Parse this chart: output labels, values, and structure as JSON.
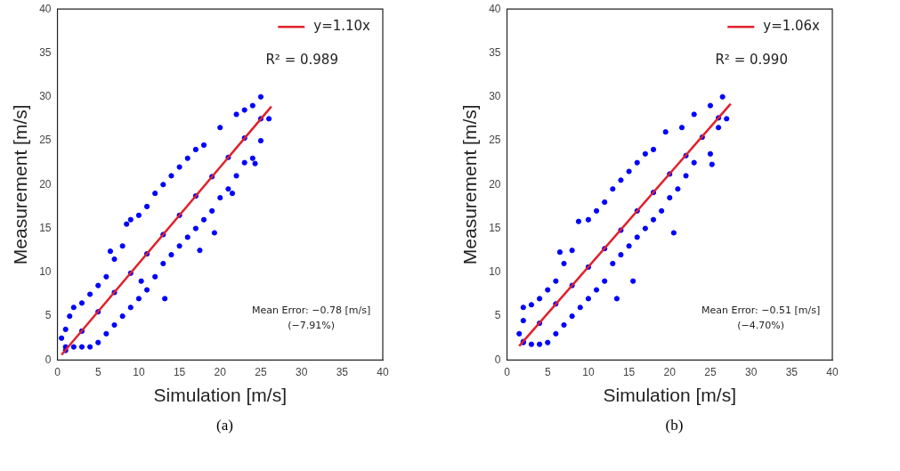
{
  "chart_data": [
    {
      "type": "scatter",
      "xlabel": "Simulation [m/s]",
      "ylabel": "Measurement [m/s]",
      "xlim": [
        0,
        40
      ],
      "ylim": [
        0,
        40
      ],
      "xticks": [
        0,
        5,
        10,
        15,
        20,
        25,
        30,
        35,
        40
      ],
      "yticks": [
        0,
        5,
        10,
        15,
        20,
        25,
        30,
        35,
        40
      ],
      "grid": false,
      "legend": "top right",
      "marker": "circle",
      "annotations": [
        "R² = 0.989",
        "Mean Error: −0.78 [m/s]",
        "(−7.91%)",
        "(a)"
      ],
      "series": [
        {
          "color": "#0000ff",
          "x": [
            0.5,
            1,
            1.5,
            2,
            3,
            4,
            5,
            6,
            7,
            8,
            8.5,
            9,
            10,
            11,
            12,
            13,
            14,
            15,
            16,
            17,
            18,
            20,
            22,
            23,
            24,
            25,
            1,
            2,
            3,
            4,
            5,
            6,
            7,
            8,
            9,
            10,
            11,
            12,
            13,
            14,
            15,
            16,
            17,
            18,
            19,
            20,
            21,
            22,
            23,
            24,
            25,
            26,
            1,
            3,
            5,
            7,
            9,
            11,
            13,
            15,
            17,
            19,
            21,
            23,
            25,
            24.3,
            10.3,
            13.2,
            19.3,
            21.5,
            6.5,
            17.5
          ],
          "values": [
            2.5,
            3.5,
            5,
            6,
            6.5,
            7.5,
            8.5,
            9.5,
            11.5,
            13,
            15.5,
            16,
            16.5,
            17.5,
            19,
            20,
            21,
            22,
            23,
            24,
            24.5,
            26.5,
            28,
            28.5,
            29,
            30,
            1.5,
            1.5,
            1.5,
            1.5,
            2,
            3,
            4,
            5,
            6,
            7,
            8,
            9.5,
            11,
            12,
            13,
            14,
            15,
            16,
            17,
            18.5,
            19.5,
            21,
            22.5,
            23,
            25,
            27.5,
            1.1,
            3.3,
            5.5,
            7.7,
            9.9,
            12.1,
            14.3,
            16.5,
            18.7,
            20.9,
            23.1,
            25.3,
            27.5,
            22.4,
            9,
            7,
            14.5,
            19,
            12.4,
            12.5
          ]
        },
        {
          "type": "line",
          "name": "y=1.10x",
          "color": "#e0202a",
          "marker": "none",
          "line_style": "solid",
          "x": [
            0.5,
            26.3
          ],
          "values": [
            0.6,
            28.9
          ]
        }
      ]
    },
    {
      "type": "scatter",
      "xlabel": "Simulation [m/s]",
      "ylabel": "Measurement [m/s]",
      "xlim": [
        0,
        40
      ],
      "ylim": [
        0,
        40
      ],
      "xticks": [
        0,
        5,
        10,
        15,
        20,
        25,
        30,
        35,
        40
      ],
      "yticks": [
        0,
        5,
        10,
        15,
        20,
        25,
        30,
        35,
        40
      ],
      "grid": false,
      "legend": "top right",
      "marker": "circle",
      "annotations": [
        "R² = 0.990",
        "Mean Error: −0.51 [m/s]",
        "(−4.70%)",
        "(b)"
      ],
      "series": [
        {
          "color": "#0000ff",
          "x": [
            1.5,
            2,
            2,
            3,
            4,
            5,
            6,
            7,
            8,
            8.8,
            10,
            11,
            12,
            13,
            14,
            15,
            16,
            17,
            18,
            19.5,
            21.5,
            23,
            25,
            26.5,
            2,
            3,
            4,
            5,
            6,
            7,
            8,
            9,
            10,
            11,
            12,
            13,
            14,
            15,
            16,
            17,
            18,
            19,
            20,
            21,
            22,
            23,
            25,
            26,
            27,
            2,
            4,
            6,
            8,
            10,
            12,
            14,
            16,
            18,
            20,
            22,
            24,
            26,
            25.2,
            15.5,
            13.5,
            20.5,
            6.5
          ],
          "values": [
            3,
            4.5,
            6,
            6.3,
            7,
            8,
            9,
            11,
            12.5,
            15.8,
            16,
            17,
            18,
            19.5,
            20.5,
            21.5,
            22.5,
            23.5,
            24,
            26,
            26.5,
            28,
            29,
            30,
            2,
            1.8,
            1.8,
            2,
            3,
            4,
            5,
            6,
            7,
            8,
            9,
            11,
            12,
            13,
            14,
            15,
            16,
            17,
            18.5,
            19.5,
            21,
            22.5,
            23.5,
            26.5,
            27.5,
            2.1,
            4.2,
            6.4,
            8.5,
            10.6,
            12.7,
            14.8,
            17,
            19.1,
            21.2,
            23.3,
            25.4,
            27.6,
            22.3,
            9,
            7,
            14.5,
            12.3
          ]
        },
        {
          "type": "line",
          "name": "y=1.06x",
          "color": "#e0202a",
          "marker": "none",
          "line_style": "solid",
          "x": [
            1.5,
            27.5
          ],
          "values": [
            1.6,
            29.2
          ]
        }
      ]
    }
  ]
}
